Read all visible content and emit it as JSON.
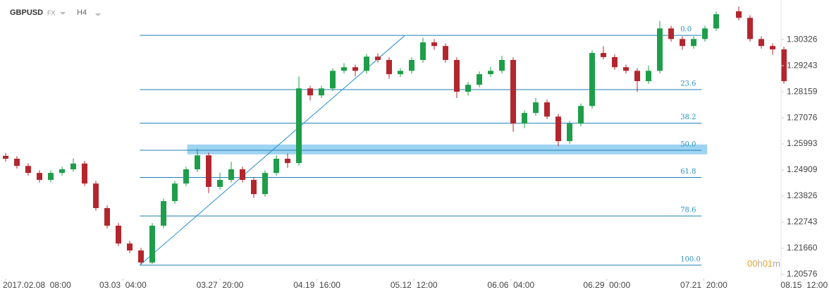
{
  "header": {
    "symbol": "GBPUSD",
    "market": "FX",
    "timeframe": "H4"
  },
  "timer": [
    "00",
    "h",
    "01",
    "m"
  ],
  "chart_data": {
    "type": "candlestick",
    "x": [
      0,
      1,
      2,
      3,
      4,
      5,
      6,
      7,
      8,
      9,
      10,
      11,
      12,
      13,
      14,
      15,
      16,
      17,
      18,
      19,
      20,
      21,
      22,
      23,
      24,
      25,
      26,
      27,
      28,
      29,
      30,
      31,
      32,
      33,
      34,
      35,
      36,
      37,
      38,
      39,
      40,
      41,
      42,
      43,
      44,
      45,
      46,
      47,
      48,
      49,
      50,
      51,
      52,
      53,
      54,
      55,
      56,
      57,
      58,
      59,
      60,
      61,
      62,
      63,
      64,
      65,
      66,
      67,
      68,
      69
    ],
    "open": [
      1.255,
      1.2538,
      1.2508,
      1.2479,
      1.245,
      1.2479,
      1.2494,
      1.2518,
      1.2435,
      1.2333,
      1.226,
      1.2186,
      1.2157,
      1.2107,
      1.226,
      1.2362,
      1.2435,
      1.2494,
      1.2552,
      1.2421,
      1.245,
      1.2494,
      1.245,
      1.2391,
      1.2479,
      1.2538,
      1.252,
      1.283,
      1.2801,
      1.283,
      1.2903,
      1.2918,
      1.2903,
      1.2962,
      1.2948,
      1.2889,
      1.2903,
      1.2948,
      1.3021,
      1.3006,
      1.2948,
      1.2816,
      1.2845,
      1.2889,
      1.2903,
      1.2948,
      1.2684,
      1.2728,
      1.2772,
      1.2713,
      1.2611,
      1.2684,
      1.2757,
      1.2977,
      1.296,
      1.2918,
      1.2903,
      1.286,
      1.2903,
      1.3079,
      1.3035,
      1.3006,
      1.3035,
      1.3079,
      null,
      1.315,
      1.3123,
      1.3035,
      1.3006,
      1.2992
    ],
    "high": [
      1.2562,
      1.2549,
      1.2519,
      1.249,
      1.249,
      1.2505,
      1.254,
      1.2529,
      1.2446,
      1.2344,
      1.2271,
      1.2197,
      1.2168,
      1.2271,
      1.2373,
      1.2446,
      1.2505,
      1.258,
      1.2563,
      1.248,
      1.2525,
      1.2505,
      1.2461,
      1.249,
      1.2552,
      1.256,
      1.288,
      1.2841,
      1.2841,
      1.2914,
      1.2935,
      1.2929,
      1.2973,
      1.2975,
      1.2959,
      1.2914,
      1.2959,
      1.304,
      1.3035,
      1.3017,
      1.2959,
      1.2856,
      1.29,
      1.292,
      1.2965,
      1.2959,
      1.2739,
      1.279,
      1.2783,
      1.2724,
      1.2695,
      1.2768,
      1.2988,
      1.3005,
      1.2971,
      1.2929,
      1.2914,
      1.2925,
      1.311,
      1.309,
      1.3046,
      1.3046,
      1.309,
      1.3149,
      null,
      1.317,
      1.3134,
      1.3046,
      1.3017,
      1.3003
    ],
    "low": [
      1.2526,
      1.2497,
      1.2468,
      1.2439,
      1.244,
      1.2468,
      1.2484,
      1.2424,
      1.2322,
      1.2249,
      1.2175,
      1.2146,
      1.21,
      1.2101,
      1.2249,
      1.2351,
      1.2424,
      1.2483,
      1.2395,
      1.241,
      1.2439,
      1.2439,
      1.2375,
      1.238,
      1.2468,
      1.25,
      1.2509,
      1.278,
      1.279,
      1.2819,
      1.2892,
      1.288,
      1.2892,
      1.2937,
      1.287,
      1.2878,
      1.2892,
      1.2937,
      1.299,
      1.2937,
      1.279,
      1.28,
      1.2834,
      1.2878,
      1.2892,
      1.265,
      1.2665,
      1.2717,
      1.2702,
      1.259,
      1.26,
      1.2673,
      1.2746,
      1.295,
      1.2907,
      1.2892,
      1.2815,
      1.2849,
      1.2892,
      1.3024,
      1.299,
      1.2995,
      1.3024,
      1.3068,
      null,
      1.3112,
      1.3024,
      1.2995,
      1.297,
      1.2849
    ],
    "close": [
      1.2538,
      1.2508,
      1.2479,
      1.245,
      1.2479,
      1.2494,
      1.2518,
      1.2435,
      1.2333,
      1.226,
      1.2186,
      1.2157,
      1.2107,
      1.226,
      1.2362,
      1.2435,
      1.2494,
      1.2552,
      1.2421,
      1.245,
      1.2494,
      1.245,
      1.2391,
      1.2479,
      1.2538,
      1.252,
      1.283,
      1.2801,
      1.283,
      1.2903,
      1.2918,
      1.2903,
      1.2962,
      1.2948,
      1.2889,
      1.2903,
      1.2948,
      1.3021,
      1.3006,
      1.2948,
      1.2816,
      1.2845,
      1.2889,
      1.2903,
      1.2948,
      1.2684,
      1.2728,
      1.2772,
      1.2713,
      1.2611,
      1.2684,
      1.2757,
      1.2977,
      1.296,
      1.2918,
      1.2903,
      1.286,
      1.2903,
      1.3079,
      1.3035,
      1.3006,
      1.3035,
      1.3079,
      1.3138,
      null,
      1.3123,
      1.3035,
      1.3006,
      1.2992,
      1.286
    ],
    "up_color": "#1e9e4a",
    "down_color": "#b3262e",
    "xlim": [
      -0.5,
      72
    ],
    "ylim": [
      1.204,
      1.3197
    ],
    "xticks": [
      {
        "value": 0,
        "label": "2017.02.08  08:00"
      },
      {
        "value": 10.4,
        "label": "03.03  04:00"
      },
      {
        "value": 19.0,
        "label": "03.27  20:00"
      },
      {
        "value": 27.6,
        "label": "04.19  16:00"
      },
      {
        "value": 36.2,
        "label": "05.12  12:00"
      },
      {
        "value": 44.8,
        "label": "06.06  04:00"
      },
      {
        "value": 53.3,
        "label": "06.29  00:00"
      },
      {
        "value": 61.9,
        "label": "07.21  20:00"
      },
      {
        "value": 70.8,
        "label": "08.15  12:00"
      }
    ],
    "yticks": [
      1.30326,
      1.29243,
      1.28159,
      1.27076,
      1.25993,
      1.24909,
      1.23826,
      1.22743,
      {
        "value": 1.2166,
        "label": "1.21660"
      },
      1.20576
    ],
    "fibonacci": {
      "high": 1.305,
      "low": 1.2096,
      "x": [
        11.9,
        61.7
      ],
      "color": "#1f7fb5",
      "levels": [
        {
          "value": 0,
          "label": "0.0"
        },
        {
          "value": 23.6,
          "label": "23.6"
        },
        {
          "value": 38.2,
          "label": "38.2"
        },
        {
          "value": 50,
          "label": "50.0"
        },
        {
          "value": 61.8,
          "label": "61.8"
        },
        {
          "value": 78.6,
          "label": "78.6"
        },
        {
          "value": 100,
          "label": "100.0"
        }
      ]
    },
    "trendline": {
      "x": [
        11.9,
        35.4
      ],
      "y": [
        1.2096,
        1.305
      ],
      "color": "#2a8fd0"
    },
    "highlight": {
      "x": [
        16.1,
        62.2
      ],
      "y": [
        1.2556,
        1.2597
      ],
      "color": "#8ccdf0"
    }
  }
}
